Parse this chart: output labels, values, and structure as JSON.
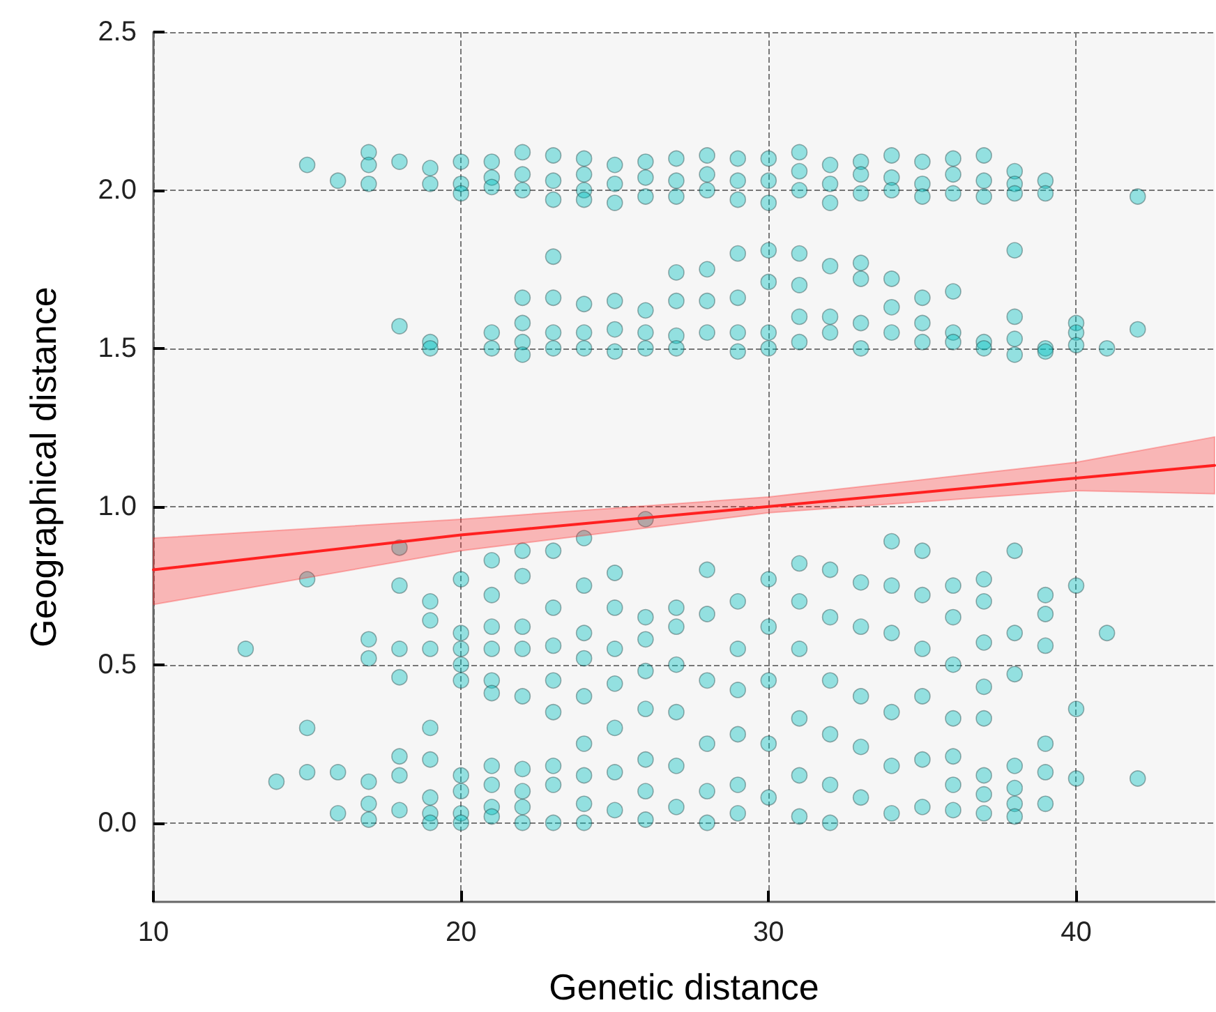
{
  "chart_data": {
    "type": "scatter",
    "xlabel": "Genetic distance",
    "ylabel": "Geographical distance",
    "xlim": [
      10,
      44.5
    ],
    "xticks": [
      10,
      20,
      30,
      40
    ],
    "ylim": [
      -0.25,
      2.5
    ],
    "yticks": [
      {
        "value": 0,
        "label": "0.0"
      },
      {
        "value": 0.5,
        "label": "0.5"
      },
      {
        "value": 1,
        "label": "1.0"
      },
      {
        "value": 1.5,
        "label": "1.5"
      },
      {
        "value": 2,
        "label": "2.0"
      },
      {
        "value": 2.5,
        "label": "2.5"
      }
    ],
    "grid": true,
    "series": [
      {
        "type": "scatter",
        "color": "#00c0c0",
        "marker": "circle",
        "x": [
          13,
          14,
          15,
          15,
          15,
          15,
          16,
          16,
          16,
          17,
          17,
          17,
          17,
          17,
          17,
          17,
          17,
          18,
          18,
          18,
          18,
          18,
          18,
          18,
          18,
          18,
          19,
          19,
          19,
          19,
          19,
          19,
          19,
          19,
          19,
          19,
          19,
          19,
          20,
          20,
          20,
          20,
          20,
          20,
          20,
          20,
          20,
          20,
          20,
          20,
          21,
          21,
          21,
          21,
          21,
          21,
          21,
          21,
          21,
          21,
          21,
          21,
          21,
          21,
          21,
          22,
          22,
          22,
          22,
          22,
          22,
          22,
          22,
          22,
          22,
          22,
          22,
          22,
          22,
          22,
          22,
          23,
          23,
          23,
          23,
          23,
          23,
          23,
          23,
          23,
          23,
          23,
          23,
          23,
          23,
          23,
          24,
          24,
          24,
          24,
          24,
          24,
          24,
          24,
          24,
          24,
          24,
          24,
          24,
          24,
          24,
          24,
          25,
          25,
          25,
          25,
          25,
          25,
          25,
          25,
          25,
          25,
          25,
          25,
          25,
          26,
          26,
          26,
          26,
          26,
          26,
          26,
          26,
          26,
          26,
          26,
          26,
          26,
          26,
          27,
          27,
          27,
          27,
          27,
          27,
          27,
          27,
          27,
          27,
          27,
          27,
          27,
          28,
          28,
          28,
          28,
          28,
          28,
          28,
          28,
          28,
          28,
          28,
          28,
          29,
          29,
          29,
          29,
          29,
          29,
          29,
          29,
          29,
          29,
          29,
          29,
          29,
          30,
          30,
          30,
          30,
          30,
          30,
          30,
          30,
          30,
          30,
          30,
          30,
          31,
          31,
          31,
          31,
          31,
          31,
          31,
          31,
          31,
          31,
          31,
          31,
          31,
          32,
          32,
          32,
          32,
          32,
          32,
          32,
          32,
          32,
          32,
          32,
          32,
          33,
          33,
          33,
          33,
          33,
          33,
          33,
          33,
          33,
          33,
          33,
          33,
          34,
          34,
          34,
          34,
          34,
          34,
          34,
          34,
          34,
          34,
          34,
          34,
          35,
          35,
          35,
          35,
          35,
          35,
          35,
          35,
          35,
          35,
          35,
          35,
          36,
          36,
          36,
          36,
          36,
          36,
          36,
          36,
          36,
          36,
          36,
          36,
          36,
          37,
          37,
          37,
          37,
          37,
          37,
          37,
          37,
          37,
          37,
          37,
          37,
          37,
          38,
          38,
          38,
          38,
          38,
          38,
          38,
          38,
          38,
          38,
          38,
          38,
          38,
          38,
          39,
          39,
          39,
          39,
          39,
          39,
          39,
          39,
          39,
          39,
          40,
          40,
          40,
          40,
          40,
          40,
          41,
          41,
          42,
          42,
          42
        ],
        "values": [
          0.55,
          0.13,
          2.08,
          0.77,
          0.3,
          0.16,
          2.03,
          0.16,
          0.03,
          2.12,
          2.08,
          2.02,
          0.58,
          0.52,
          0.13,
          0.06,
          0.01,
          2.09,
          1.57,
          0.87,
          0.75,
          0.55,
          0.46,
          0.21,
          0.15,
          0.04,
          2.07,
          2.02,
          1.52,
          1.5,
          0.7,
          0.64,
          0.55,
          0.3,
          0.2,
          0.08,
          0.03,
          0.0,
          2.09,
          2.02,
          1.99,
          0.77,
          0.6,
          0.55,
          0.5,
          0.45,
          0.15,
          0.1,
          0.03,
          0.0,
          2.09,
          2.04,
          2.01,
          1.55,
          1.5,
          0.83,
          0.72,
          0.62,
          0.55,
          0.45,
          0.41,
          0.18,
          0.12,
          0.05,
          0.02,
          2.12,
          2.05,
          2.0,
          1.66,
          1.58,
          1.52,
          1.48,
          0.86,
          0.78,
          0.62,
          0.55,
          0.4,
          0.17,
          0.1,
          0.05,
          0.0,
          2.11,
          2.03,
          1.97,
          1.79,
          1.66,
          1.55,
          1.5,
          0.86,
          0.68,
          0.56,
          0.45,
          0.35,
          0.18,
          0.12,
          0.0,
          2.1,
          2.05,
          2.0,
          1.97,
          1.64,
          1.55,
          1.5,
          0.9,
          0.75,
          0.6,
          0.52,
          0.4,
          0.25,
          0.15,
          0.06,
          0.0,
          2.08,
          2.02,
          1.96,
          1.65,
          1.56,
          1.49,
          0.79,
          0.68,
          0.55,
          0.44,
          0.3,
          0.16,
          0.04,
          2.09,
          2.04,
          1.98,
          1.62,
          1.55,
          1.5,
          0.96,
          0.65,
          0.58,
          0.48,
          0.36,
          0.2,
          0.1,
          0.01,
          2.1,
          2.03,
          1.98,
          1.74,
          1.65,
          1.54,
          1.5,
          0.68,
          0.62,
          0.5,
          0.35,
          0.18,
          0.05,
          2.11,
          2.05,
          2.0,
          1.75,
          1.65,
          1.55,
          0.8,
          0.66,
          0.45,
          0.25,
          0.1,
          0.0,
          2.1,
          2.03,
          1.97,
          1.8,
          1.66,
          1.55,
          1.49,
          0.7,
          0.55,
          0.42,
          0.28,
          0.12,
          0.03,
          2.1,
          2.03,
          1.96,
          1.81,
          1.71,
          1.55,
          1.5,
          0.77,
          0.62,
          0.45,
          0.25,
          0.08,
          2.12,
          2.06,
          2.0,
          1.8,
          1.7,
          1.6,
          1.52,
          0.82,
          0.7,
          0.55,
          0.33,
          0.15,
          0.02,
          2.08,
          2.02,
          1.96,
          1.76,
          1.6,
          1.55,
          0.8,
          0.65,
          0.45,
          0.28,
          0.12,
          0.0,
          2.09,
          2.05,
          1.99,
          1.77,
          1.72,
          1.58,
          1.5,
          0.76,
          0.62,
          0.4,
          0.24,
          0.08,
          2.11,
          2.04,
          2.0,
          1.72,
          1.63,
          1.55,
          0.89,
          0.75,
          0.6,
          0.35,
          0.18,
          0.03,
          2.09,
          2.02,
          1.98,
          1.66,
          1.58,
          1.52,
          0.86,
          0.72,
          0.55,
          0.4,
          0.2,
          0.05,
          2.1,
          2.05,
          1.99,
          1.68,
          1.55,
          1.52,
          0.75,
          0.65,
          0.5,
          0.33,
          0.21,
          0.12,
          0.04,
          2.11,
          2.03,
          1.98,
          1.52,
          1.5,
          0.77,
          0.7,
          0.57,
          0.43,
          0.33,
          0.15,
          0.09,
          0.03,
          2.06,
          2.02,
          1.99,
          1.81,
          1.6,
          1.53,
          1.48,
          0.86,
          0.6,
          0.47,
          0.18,
          0.11,
          0.06,
          0.02,
          2.03,
          1.99,
          1.5,
          1.49,
          0.72,
          0.66,
          0.56,
          0.25,
          0.16,
          0.06,
          1.58,
          1.55,
          1.51,
          0.75,
          0.36,
          0.14,
          1.5,
          0.6,
          1.98,
          1.56,
          0.14
        ]
      },
      {
        "type": "line",
        "color": "#ff2020",
        "marker": "none",
        "line_style": "solid",
        "x": [
          10,
          20,
          30,
          40,
          44.5
        ],
        "values": [
          0.8,
          0.91,
          1.0,
          1.09,
          1.13
        ],
        "lower": [
          0.69,
          0.86,
          0.98,
          1.05,
          1.04
        ],
        "upper": [
          0.9,
          0.96,
          1.03,
          1.14,
          1.22
        ]
      }
    ]
  }
}
